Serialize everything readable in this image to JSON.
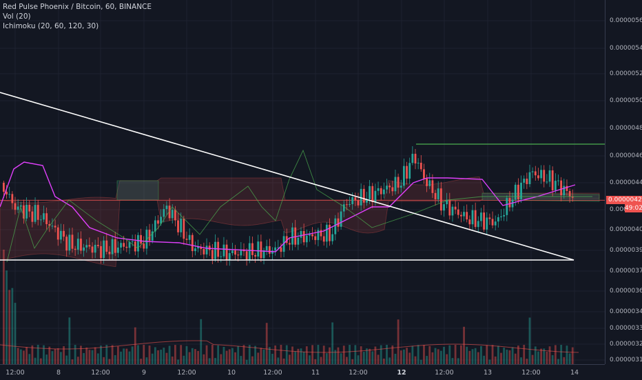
{
  "legend": {
    "symbol": "Red Pulse Phoenix / Bitcoin, 60, BINANCE",
    "vol": "Vol (20)",
    "ichimoku": "Ichimoku (20, 60, 120, 30)"
  },
  "colors": {
    "background": "#131722",
    "grid": "#1e2230",
    "up": "#26a69a",
    "down": "#ef5350",
    "kijun": "#e040fb",
    "tenkan": "#26a69a",
    "price_line": "#ef5350",
    "trendline": "#ffffff",
    "span_line": "#4caf50"
  },
  "price_axis": {
    "labels": [
      "0.00000560",
      "0.00000540",
      "0.00000520",
      "0.00000500",
      "0.00000480",
      "0.00000460",
      "0.00000440",
      "0.00000420",
      "0.00000405",
      "0.00000390",
      "0.00000375",
      "0.00000360",
      "0.00000345",
      "0.00000333",
      "0.00000321",
      "0.00000310"
    ],
    "current_price": "0.00000427",
    "countdown": "49:02"
  },
  "time_axis": {
    "labels": [
      {
        "text": "12:00",
        "bold": false
      },
      {
        "text": "8",
        "bold": false
      },
      {
        "text": "12:00",
        "bold": false
      },
      {
        "text": "9",
        "bold": false
      },
      {
        "text": "12:00",
        "bold": false
      },
      {
        "text": "10",
        "bold": false
      },
      {
        "text": "12:00",
        "bold": false
      },
      {
        "text": "11",
        "bold": false
      },
      {
        "text": "12:00",
        "bold": false
      },
      {
        "text": "12",
        "bold": true
      },
      {
        "text": "12:00",
        "bold": false
      },
      {
        "text": "13",
        "bold": false
      },
      {
        "text": "12:00",
        "bold": false
      },
      {
        "text": "14",
        "bold": false
      }
    ]
  },
  "chart_data": {
    "type": "candlestick",
    "interval": "60",
    "axis_range_price": [
      3.7e-06,
      5.7e-06
    ],
    "grid": true,
    "trendlines": [
      {
        "from_price": 5.04e-06,
        "to_price": 3.81e-06
      },
      {
        "from_price": 3.81e-06,
        "to_price": 3.81e-06
      }
    ],
    "horizontal_line_price": 4.67e-06,
    "current_price": 4.27e-06,
    "candle_overview": [
      {
        "x": "12:00",
        "open": 4.2e-06,
        "close": 4.15e-06
      },
      {
        "x": "8",
        "open": 4.05e-06,
        "close": 3.98e-06
      },
      {
        "x": "9",
        "open": 3.92e-06,
        "close": 3.95e-06
      },
      {
        "x": "10",
        "open": 3.85e-06,
        "close": 3.83e-06
      },
      {
        "x": "11",
        "open": 4e-06,
        "close": 4.2e-06
      },
      {
        "x": "12",
        "open": 4.4e-06,
        "close": 4.58e-06
      },
      {
        "x": "13",
        "open": 4.12e-06,
        "close": 4.1e-06
      },
      {
        "x": "14",
        "open": 4.32e-06,
        "close": 4.27e-06
      }
    ]
  }
}
